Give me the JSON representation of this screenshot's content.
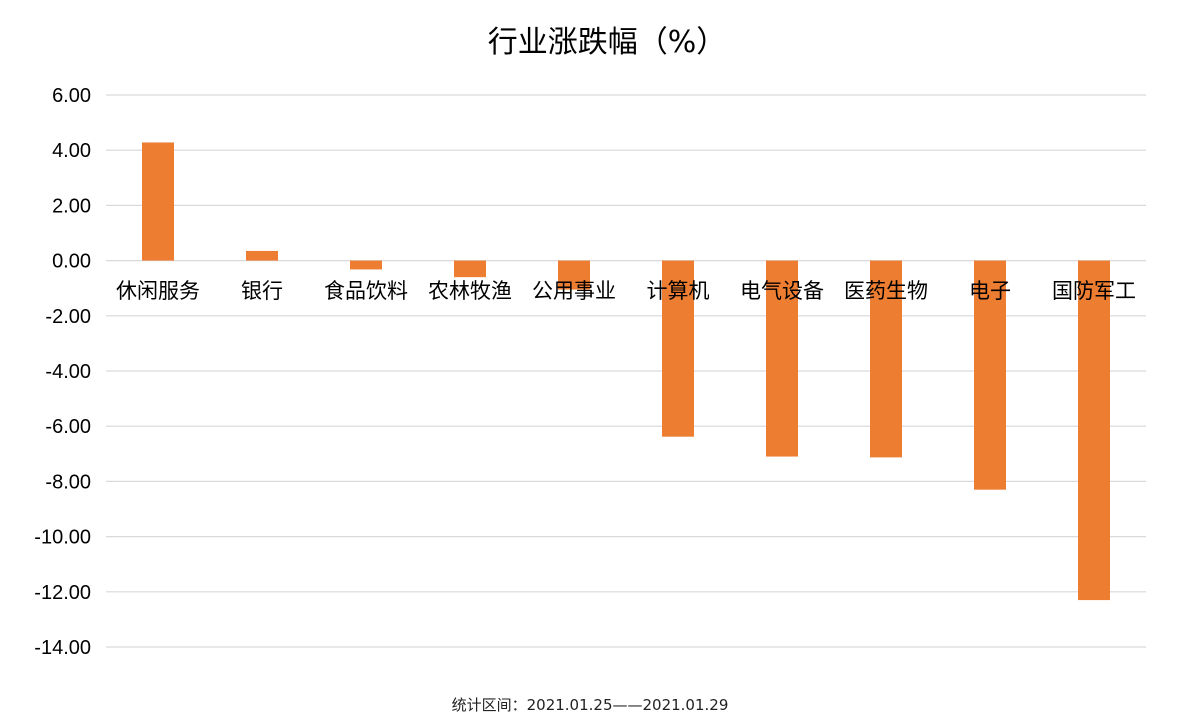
{
  "chart_data": {
    "type": "bar",
    "title": "行业涨跌幅（%）",
    "categories": [
      "休闲服务",
      "银行",
      "食品饮料",
      "农林牧渔",
      "公用事业",
      "计算机",
      "电气设备",
      "医药生物",
      "电子",
      "国防军工"
    ],
    "values": [
      4.28,
      0.35,
      -0.32,
      -0.6,
      -1.05,
      -6.38,
      -7.1,
      -7.13,
      -8.3,
      -12.3
    ],
    "ylim": [
      -14,
      6
    ],
    "yticks": [
      "6.00",
      "4.00",
      "2.00",
      "0.00",
      "-2.00",
      "-4.00",
      "-6.00",
      "-8.00",
      "-10.00",
      "-12.00",
      "-14.00"
    ],
    "xlabel": "",
    "ylabel": "",
    "grid": true,
    "legend": "none",
    "bar_color": "#ED7D31",
    "grid_color": "#D9D9D9"
  },
  "footer": {
    "note": "统计区间：2021.01.25——2021.01.29"
  }
}
